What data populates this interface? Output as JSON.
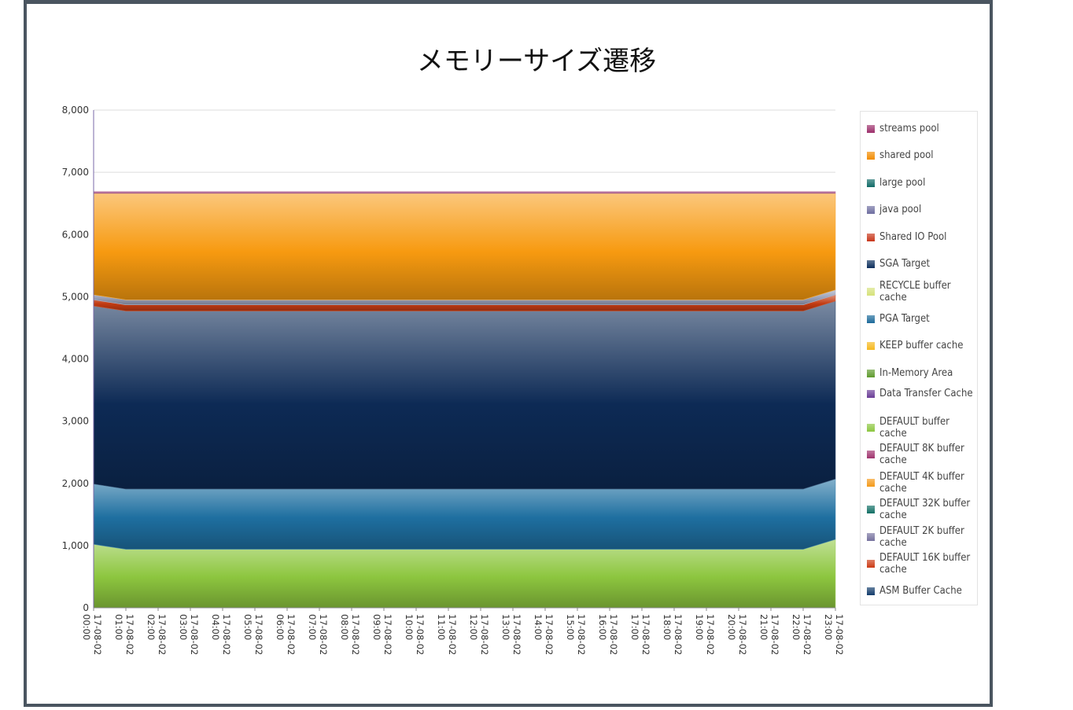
{
  "chart_data": {
    "type": "area",
    "stacked": true,
    "title": "メモリーサイズ遷移",
    "xlabel": "",
    "ylabel": "",
    "ylim": [
      0,
      8000
    ],
    "yticks": [
      "0",
      "1,000",
      "2,000",
      "3,000",
      "4,000",
      "5,000",
      "6,000",
      "7,000",
      "8,000"
    ],
    "grid": true,
    "legend_position": "right",
    "x": [
      "17-08-02 00:00",
      "17-08-02 01:00",
      "17-08-02 02:00",
      "17-08-02 03:00",
      "17-08-02 04:00",
      "17-08-02 05:00",
      "17-08-02 06:00",
      "17-08-02 07:00",
      "17-08-02 08:00",
      "17-08-02 09:00",
      "17-08-02 10:00",
      "17-08-02 11:00",
      "17-08-02 12:00",
      "17-08-02 13:00",
      "17-08-02 14:00",
      "17-08-02 15:00",
      "17-08-02 16:00",
      "17-08-02 17:00",
      "17-08-02 18:00",
      "17-08-02 19:00",
      "17-08-02 20:00",
      "17-08-02 21:00",
      "17-08-02 22:00",
      "17-08-02 23:00"
    ],
    "series": [
      {
        "name": "DEFAULT buffer cache",
        "color": "#8dc63f",
        "values": [
          1020,
          940,
          940,
          940,
          940,
          940,
          940,
          940,
          940,
          940,
          940,
          940,
          940,
          940,
          940,
          940,
          940,
          940,
          940,
          940,
          940,
          940,
          940,
          1100
        ]
      },
      {
        "name": "PGA Target",
        "color": "#1e6fa0",
        "values": [
          970,
          970,
          970,
          970,
          970,
          970,
          970,
          970,
          970,
          970,
          970,
          970,
          970,
          970,
          970,
          970,
          970,
          970,
          970,
          970,
          970,
          970,
          970,
          970
        ]
      },
      {
        "name": "SGA Target",
        "color": "#0d2a55",
        "values": [
          2860,
          2860,
          2860,
          2860,
          2860,
          2860,
          2860,
          2860,
          2860,
          2860,
          2860,
          2860,
          2860,
          2860,
          2860,
          2860,
          2860,
          2860,
          2860,
          2860,
          2860,
          2860,
          2860,
          2860
        ]
      },
      {
        "name": "Shared IO Pool",
        "color": "#c23b12",
        "values": [
          100,
          100,
          100,
          100,
          100,
          100,
          100,
          100,
          100,
          100,
          100,
          100,
          100,
          100,
          100,
          100,
          100,
          100,
          100,
          100,
          100,
          100,
          100,
          100
        ]
      },
      {
        "name": "java pool",
        "color": "#9aa0b8",
        "values": [
          80,
          80,
          80,
          80,
          80,
          80,
          80,
          80,
          80,
          80,
          80,
          80,
          80,
          80,
          80,
          80,
          80,
          80,
          80,
          80,
          80,
          80,
          80,
          80
        ]
      },
      {
        "name": "shared pool",
        "color": "#f79a10",
        "values": [
          1630,
          1710,
          1710,
          1710,
          1710,
          1710,
          1710,
          1710,
          1710,
          1710,
          1710,
          1710,
          1710,
          1710,
          1710,
          1710,
          1710,
          1710,
          1710,
          1710,
          1710,
          1710,
          1710,
          1550
        ]
      },
      {
        "name": "streams pool",
        "color": "#b06090",
        "values": [
          30,
          30,
          30,
          30,
          30,
          30,
          30,
          30,
          30,
          30,
          30,
          30,
          30,
          30,
          30,
          30,
          30,
          30,
          30,
          30,
          30,
          30,
          30,
          30
        ]
      }
    ],
    "legend": [
      {
        "name": "streams pool",
        "color": "#9c2f6b"
      },
      {
        "name": "shared pool",
        "color": "#f28c00"
      },
      {
        "name": "large pool",
        "color": "#0f6a66"
      },
      {
        "name": "java pool",
        "color": "#6f6ea0"
      },
      {
        "name": "Shared IO Pool",
        "color": "#c8361a"
      },
      {
        "name": "SGA Target",
        "color": "#0b2d5c"
      },
      {
        "name": "RECYCLE buffer cache",
        "color": "#d6e27a"
      },
      {
        "name": "PGA Target",
        "color": "#1c6a9a"
      },
      {
        "name": "KEEP buffer cache",
        "color": "#f5b81e"
      },
      {
        "name": "In-Memory Area",
        "color": "#5e9a2c"
      },
      {
        "name": "Data Transfer Cache",
        "color": "#6a3c96"
      },
      {
        "name": "DEFAULT buffer cache",
        "color": "#8cc63f"
      },
      {
        "name": "DEFAULT 8K buffer cache",
        "color": "#a0336e"
      },
      {
        "name": "DEFAULT 4K buffer cache",
        "color": "#f49a1a"
      },
      {
        "name": "DEFAULT 32K buffer cache",
        "color": "#117065"
      },
      {
        "name": "DEFAULT 2K buffer cache",
        "color": "#76729e"
      },
      {
        "name": "DEFAULT 16K buffer cache",
        "color": "#cc3a14"
      },
      {
        "name": "ASM Buffer Cache",
        "color": "#123b6b"
      }
    ]
  }
}
